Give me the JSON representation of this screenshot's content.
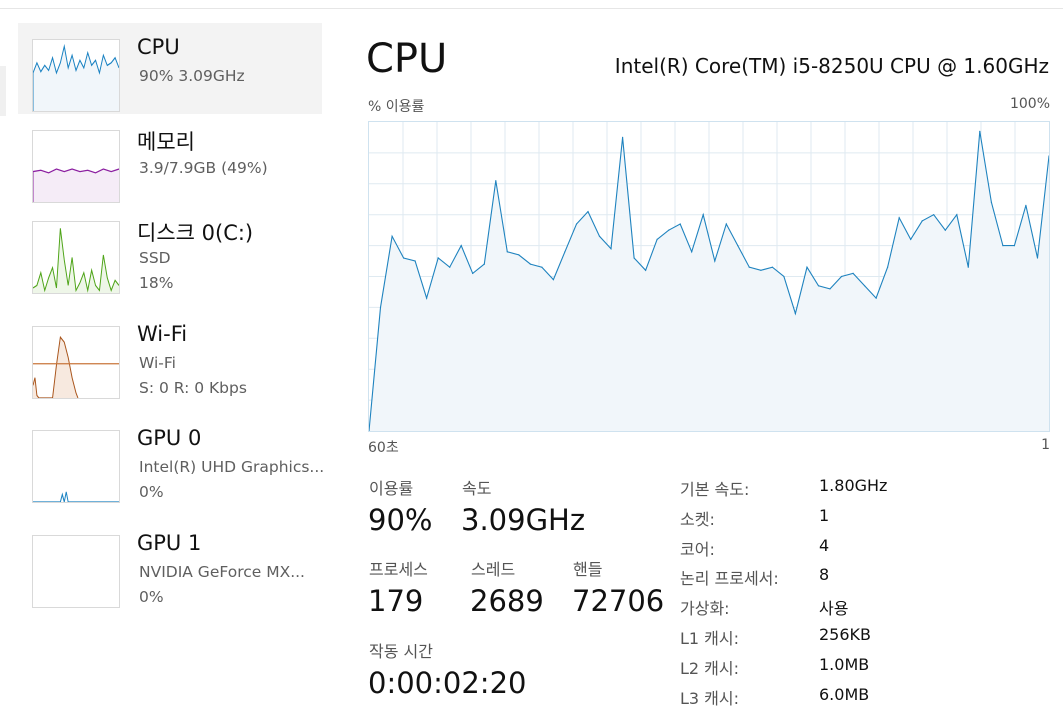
{
  "sidebar": {
    "items": [
      {
        "title": "CPU",
        "lines": [
          "90%  3.09GHz"
        ],
        "color": "#1a82c2"
      },
      {
        "title": "메모리",
        "lines": [
          "3.9/7.9GB (49%)"
        ],
        "color": "#8b1ea0"
      },
      {
        "title": "디스크 0(C:)",
        "lines": [
          "SSD",
          "18%"
        ],
        "color": "#4ea418"
      },
      {
        "title": "Wi-Fi",
        "lines": [
          "Wi-Fi",
          "S: 0  R: 0 Kbps"
        ],
        "color": "#a9551c"
      },
      {
        "title": "GPU 0",
        "lines": [
          "Intel(R) UHD Graphics...",
          "0%"
        ],
        "color": "#1a82c2"
      },
      {
        "title": "GPU 1",
        "lines": [
          "NVIDIA GeForce MX...",
          "0%"
        ],
        "color": "#1a82c2"
      }
    ]
  },
  "header": {
    "title": "CPU",
    "model": "Intel(R) Core(TM) i5-8250U CPU @ 1.60GHz"
  },
  "chart": {
    "ylabel": "% 이용률",
    "ymax_label": "100%",
    "xleft_label": "60초",
    "xright_label": "1",
    "line_color": "#1f83bf",
    "fill_color": "#f1f6fa",
    "grid_color": "#dfeaf1"
  },
  "chart_data": {
    "type": "area",
    "title": "",
    "ylabel": "% 이용률",
    "xlabel": "",
    "ylim": [
      0,
      100
    ],
    "x_range_seconds": [
      60,
      1
    ],
    "values": [
      0,
      40,
      63,
      56,
      55,
      43,
      56,
      53,
      60,
      51,
      54,
      81,
      58,
      57,
      54,
      53,
      49,
      58,
      67,
      71,
      63,
      59,
      95,
      56,
      52,
      62,
      65,
      67,
      58,
      70,
      55,
      67,
      60,
      53,
      52,
      53,
      50,
      38,
      53,
      47,
      46,
      50,
      51,
      47,
      43,
      53,
      69,
      62,
      68,
      70,
      65,
      70,
      53,
      97,
      74,
      60,
      60,
      73,
      56,
      89
    ]
  },
  "stats": {
    "utilization": {
      "label": "이용률",
      "value": "90%"
    },
    "speed": {
      "label": "속도",
      "value": "3.09GHz"
    },
    "processes": {
      "label": "프로세스",
      "value": "179"
    },
    "threads": {
      "label": "스레드",
      "value": "2689"
    },
    "handles": {
      "label": "핸들",
      "value": "72706"
    },
    "uptime": {
      "label": "작동 시간",
      "value": "0:00:02:20"
    }
  },
  "info": [
    {
      "key": "기본 속도:",
      "value": "1.80GHz"
    },
    {
      "key": "소켓:",
      "value": "1"
    },
    {
      "key": "코어:",
      "value": "4"
    },
    {
      "key": "논리 프로세서:",
      "value": "8"
    },
    {
      "key": "가상화:",
      "value": "사용"
    },
    {
      "key": "L1 캐시:",
      "value": "256KB"
    },
    {
      "key": "L2 캐시:",
      "value": "1.0MB"
    },
    {
      "key": "L3 캐시:",
      "value": "6.0MB"
    }
  ]
}
